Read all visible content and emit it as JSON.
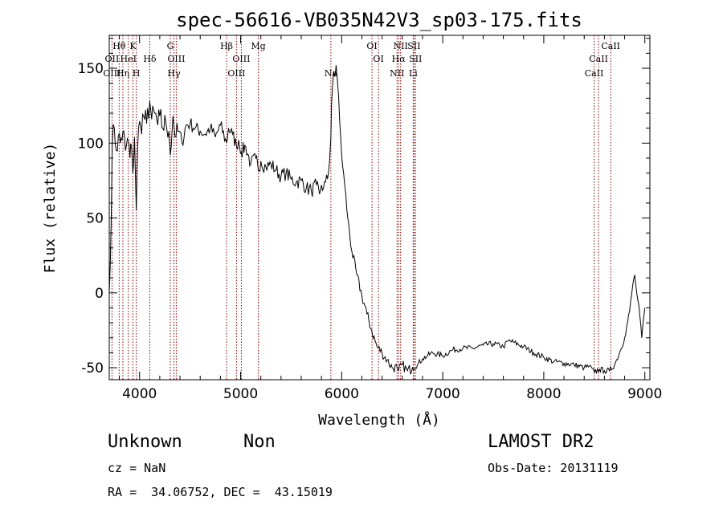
{
  "chart_data": {
    "type": "line",
    "title": "spec-56616-VB035N42V3_sp03-175.fits",
    "xlabel": "Wavelength (Å)",
    "ylabel": "Flux (relative)",
    "xlim": [
      3700,
      9050
    ],
    "ylim": [
      -58,
      172
    ],
    "xticks": [
      4000,
      5000,
      6000,
      7000,
      8000,
      9000
    ],
    "yticks": [
      -50,
      0,
      50,
      100,
      150
    ],
    "grid": false,
    "series": [
      {
        "x": [
          3700,
          3710,
          3730,
          3750,
          3770,
          3790,
          3810,
          3835,
          3860,
          3889,
          3905,
          3920,
          3934,
          3950,
          3968,
          3975,
          3990,
          4010,
          4040,
          4070,
          4101,
          4120,
          4150,
          4180,
          4200,
          4230,
          4260,
          4290,
          4304,
          4330,
          4340,
          4360,
          4390,
          4420,
          4460,
          4500,
          4550,
          4600,
          4650,
          4700,
          4750,
          4800,
          4861,
          4880,
          4920,
          4959,
          4980,
          5007,
          5050,
          5100,
          5150,
          5175,
          5200,
          5250,
          5300,
          5350,
          5400,
          5450,
          5500,
          5550,
          5600,
          5650,
          5700,
          5750,
          5780,
          5800,
          5820,
          5840,
          5860,
          5880,
          5893,
          5900,
          5910,
          5920,
          5930,
          5945,
          5960,
          5980,
          6000,
          6030,
          6060,
          6100,
          6150,
          6200,
          6250,
          6300,
          6350,
          6400,
          6450,
          6500,
          6550,
          6563,
          6600,
          6650,
          6700,
          6750,
          6800,
          6850,
          6900,
          7000,
          7100,
          7200,
          7300,
          7400,
          7500,
          7600,
          7650,
          7700,
          7800,
          7900,
          8000,
          8100,
          8200,
          8300,
          8400,
          8450,
          8500,
          8550,
          8600,
          8650,
          8700,
          8750,
          8800,
          8850,
          8880,
          8900,
          8920,
          8950,
          8970,
          9000
        ],
        "y": [
          0,
          20,
          100,
          110,
          95,
          105,
          100,
          108,
          95,
          102,
          90,
          98,
          80,
          104,
          55,
          82,
          110,
          112,
          118,
          113,
          128,
          116,
          120,
          112,
          118,
          110,
          114,
          108,
          92,
          118,
          112,
          104,
          108,
          100,
          112,
          113,
          110,
          108,
          106,
          110,
          104,
          112,
          100,
          110,
          106,
          98,
          102,
          94,
          98,
          86,
          90,
          82,
          88,
          84,
          86,
          82,
          78,
          80,
          76,
          74,
          75,
          70,
          68,
          72,
          66,
          72,
          70,
          74,
          76,
          88,
          104,
          126,
          138,
          148,
          145,
          152,
          140,
          115,
          92,
          72,
          50,
          28,
          12,
          -2,
          -14,
          -26,
          -36,
          -40,
          -45,
          -50,
          -50,
          -52,
          -48,
          -52,
          -50,
          -48,
          -44,
          -42,
          -40,
          -42,
          -38,
          -37,
          -37,
          -35,
          -34,
          -36,
          -32,
          -33,
          -36,
          -40,
          -43,
          -46,
          -47,
          -48,
          -50,
          -49,
          -53,
          -51,
          -52,
          -52,
          -48,
          -40,
          -30,
          -12,
          5,
          12,
          0,
          -15,
          -30,
          -10
        ]
      }
    ],
    "spectral_lines": [
      {
        "label": "Hθ",
        "wavelength": 3798,
        "row": 1
      },
      {
        "label": "OII",
        "wavelength": 3727,
        "row": 2
      },
      {
        "label": "HeI",
        "wavelength": 3889,
        "row": 2
      },
      {
        "label": "OIII",
        "wavelength": 3727,
        "row": 3
      },
      {
        "label": "Hη",
        "wavelength": 3835,
        "row": 3
      },
      {
        "label": "K",
        "wavelength": 3934,
        "row": 1
      },
      {
        "label": "H",
        "wavelength": 3968,
        "row": 3
      },
      {
        "label": "Hδ",
        "wavelength": 4101,
        "row": 2
      },
      {
        "label": "G",
        "wavelength": 4304,
        "row": 1
      },
      {
        "label": "OIII",
        "wavelength": 4363,
        "row": 2
      },
      {
        "label": "Hγ",
        "wavelength": 4340,
        "row": 3
      },
      {
        "label": "Hβ",
        "wavelength": 4861,
        "row": 1
      },
      {
        "label": "OIII",
        "wavelength": 5007,
        "row": 2
      },
      {
        "label": "OIII",
        "wavelength": 4959,
        "row": 3
      },
      {
        "label": "Mg",
        "wavelength": 5175,
        "row": 1
      },
      {
        "label": "Na",
        "wavelength": 5893,
        "row": 3
      },
      {
        "label": "OI",
        "wavelength": 6300,
        "row": 1
      },
      {
        "label": "OI",
        "wavelength": 6364,
        "row": 2
      },
      {
        "label": "NII",
        "wavelength": 6583,
        "row": 1
      },
      {
        "label": "SII",
        "wavelength": 6716,
        "row": 1
      },
      {
        "label": "Hα",
        "wavelength": 6563,
        "row": 2
      },
      {
        "label": "SII",
        "wavelength": 6731,
        "row": 2
      },
      {
        "label": "NII",
        "wavelength": 6548,
        "row": 3
      },
      {
        "label": "Li",
        "wavelength": 6708,
        "row": 3
      },
      {
        "label": "CaII",
        "wavelength": 8662,
        "row": 1
      },
      {
        "label": "CaII",
        "wavelength": 8542,
        "row": 2
      },
      {
        "label": "CaII",
        "wavelength": 8498,
        "row": 3
      }
    ],
    "colors": {
      "spectrum": "#000000",
      "line_markers": "#8b0000"
    }
  },
  "info": {
    "class": "Unknown",
    "subclass": "Non",
    "survey": "LAMOST DR2",
    "redshift": "cz = NaN",
    "obs_date": "Obs-Date: 20131119",
    "coords": "RA =  34.06752, DEC =  43.15019"
  }
}
